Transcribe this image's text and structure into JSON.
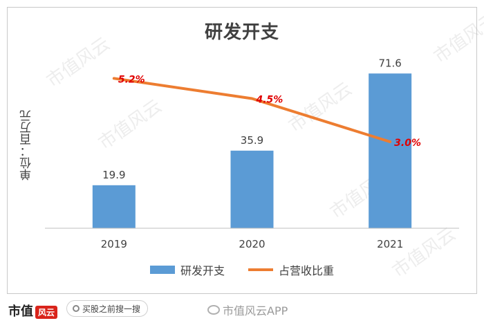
{
  "chart_data": {
    "type": "bar",
    "title": "研发开支",
    "ylabel": "单位：百万元",
    "categories": [
      "2019",
      "2020",
      "2021"
    ],
    "series": [
      {
        "name": "研发开支",
        "type": "bar",
        "values": [
          19.9,
          35.9,
          71.6
        ],
        "labels": [
          "19.9",
          "35.9",
          "71.6"
        ],
        "color": "#5b9bd5"
      },
      {
        "name": "占营收比重",
        "type": "line",
        "values": [
          5.2,
          4.5,
          3.0
        ],
        "labels": [
          "5.2%",
          "4.5%",
          "3.0%"
        ],
        "color": "#ed7d31"
      }
    ],
    "ylim": [
      0,
      80
    ],
    "secondary_ylim": [
      0,
      6
    ],
    "grid": false,
    "legend_position": "bottom",
    "data_label_color_line": "#e00000"
  },
  "watermark": "市值风云",
  "footer": {
    "logo_text": "市值",
    "logo_badge": "风云",
    "search_text": "买股之前搜一搜",
    "weibo_text": "市值风云APP"
  }
}
